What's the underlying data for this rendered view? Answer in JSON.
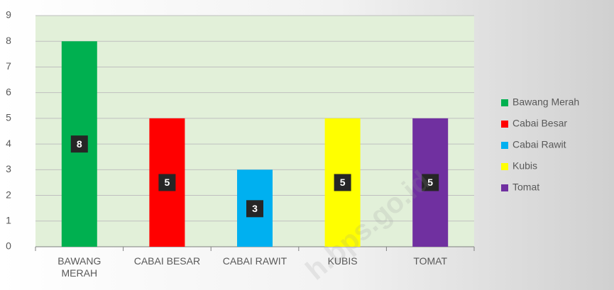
{
  "chart_data": {
    "type": "bar",
    "categories": [
      "BAWANG MERAH",
      "CABAI BESAR",
      "CABAI RAWIT",
      "KUBIS",
      "TOMAT"
    ],
    "values": [
      8,
      5,
      3,
      5,
      5
    ],
    "colors": [
      "#00b050",
      "#ff0000",
      "#00b0f0",
      "#ffff00",
      "#7030a0"
    ],
    "legend": [
      "Bawang Merah",
      "Cabai Besar",
      "Cabai Rawit",
      "Kubis",
      "Tomat"
    ],
    "legend_position": "right",
    "ylim": [
      0,
      9
    ],
    "yticks": [
      0,
      1,
      2,
      3,
      4,
      5,
      6,
      7,
      8,
      9
    ],
    "grid": true,
    "watermark": "h.bps.go.id"
  }
}
